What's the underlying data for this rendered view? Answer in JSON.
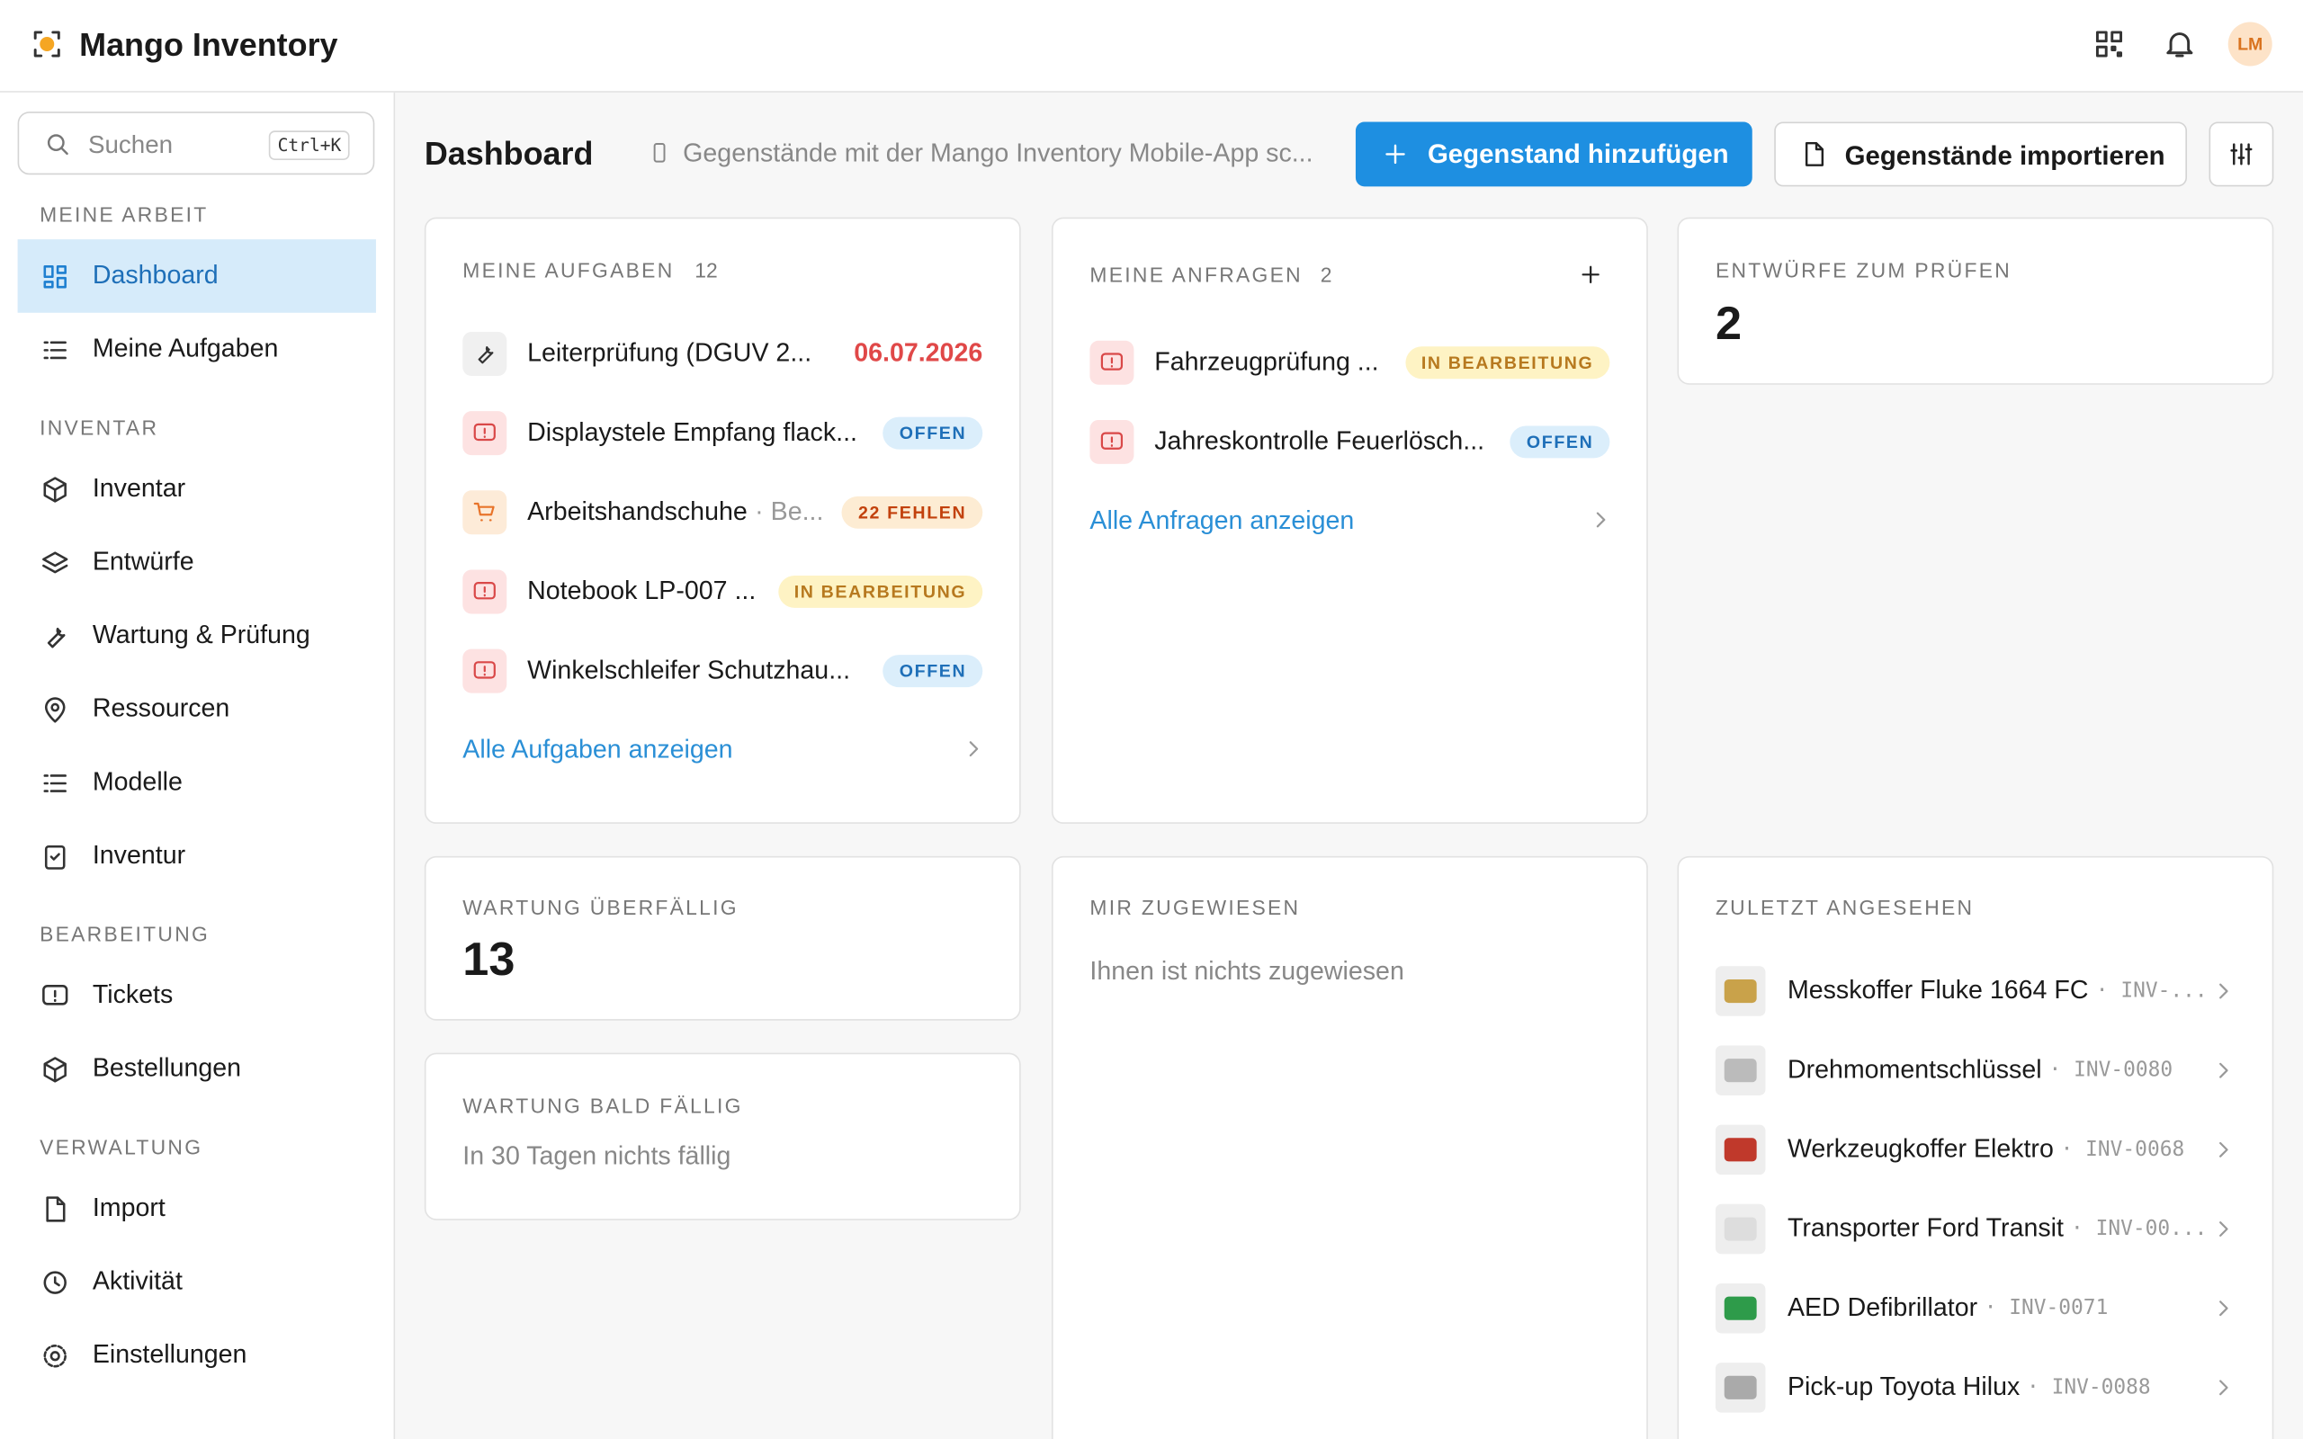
{
  "header": {
    "app_name": "Mango Inventory",
    "avatar": "LM"
  },
  "sidebar": {
    "search_placeholder": "Suchen",
    "search_shortcut": "Ctrl+K",
    "groups": [
      {
        "title": "MEINE ARBEIT",
        "items": [
          "Dashboard",
          "Meine Aufgaben"
        ]
      },
      {
        "title": "INVENTAR",
        "items": [
          "Inventar",
          "Entwürfe",
          "Wartung & Prüfung",
          "Ressourcen",
          "Modelle",
          "Inventur"
        ]
      },
      {
        "title": "BEARBEITUNG",
        "items": [
          "Tickets",
          "Bestellungen"
        ]
      },
      {
        "title": "VERWALTUNG",
        "items": [
          "Import",
          "Aktivität",
          "Einstellungen"
        ]
      }
    ]
  },
  "toolbar": {
    "title": "Dashboard",
    "hint": "Gegenstände mit der Mango Inventory Mobile-App sc...",
    "add_button": "Gegenstand hinzufügen",
    "import_button": "Gegenstände importieren"
  },
  "tasks": {
    "title": "MEINE AUFGABEN",
    "count": "12",
    "items": [
      {
        "label": "Leiterprüfung (DGUV 2...",
        "date": "06.07.2026"
      },
      {
        "label": "Displaystele Empfang flack...",
        "badge": "OFFEN"
      },
      {
        "label": "Arbeitshandschuhe",
        "sub": "· Be...",
        "badge": "22 FEHLEN"
      },
      {
        "label": "Notebook LP-007 ...",
        "badge": "IN BEARBEITUNG"
      },
      {
        "label": "Winkelschleifer Schutzhau...",
        "badge": "OFFEN"
      }
    ],
    "link": "Alle Aufgaben anzeigen"
  },
  "requests": {
    "title": "MEINE ANFRAGEN",
    "count": "2",
    "items": [
      {
        "label": "Fahrzeugprüfung ...",
        "badge": "IN BEARBEITUNG"
      },
      {
        "label": "Jahreskontrolle Feuerlösch...",
        "badge": "OFFEN"
      }
    ],
    "link": "Alle Anfragen anzeigen"
  },
  "drafts": {
    "title": "ENTWÜRFE ZUM PRÜFEN",
    "count": "2"
  },
  "overdue": {
    "title": "WARTUNG ÜBERFÄLLIG",
    "count": "13"
  },
  "due_soon": {
    "title": "WARTUNG BALD FÄLLIG",
    "empty": "In 30 Tagen nichts fällig"
  },
  "assigned": {
    "title": "MIR ZUGEWIESEN",
    "empty": "Ihnen ist nichts zugewiesen"
  },
  "recent": {
    "title": "ZULETZT ANGESEHEN",
    "items": [
      {
        "name": "Messkoffer Fluke 1664 FC",
        "code": "· INV-..."
      },
      {
        "name": "Drehmomentschlüssel",
        "code": "· INV-0080"
      },
      {
        "name": "Werkzeugkoffer Elektro",
        "code": "· INV-0068"
      },
      {
        "name": "Transporter Ford Transit",
        "code": "· INV-00..."
      },
      {
        "name": "AED Defibrillator",
        "code": "· INV-0071"
      },
      {
        "name": "Pick-up Toyota Hilux",
        "code": "· INV-0088"
      }
    ]
  }
}
